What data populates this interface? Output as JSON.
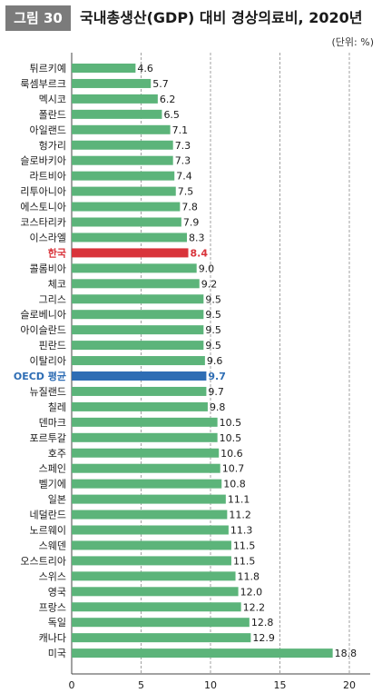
{
  "header": {
    "figure_label": "그림 30",
    "title": "국내총생산(GDP) 대비 경상의료비, 2020년",
    "unit": "(단위: %)"
  },
  "chart_data": {
    "type": "bar",
    "orientation": "horizontal",
    "categories": [
      "튀르키예",
      "룩셈부르크",
      "멕시코",
      "폴란드",
      "아일랜드",
      "헝가리",
      "슬로바키아",
      "라트비아",
      "리투아니아",
      "에스토니아",
      "코스타리카",
      "이스라엘",
      "한국",
      "콜롬비아",
      "체코",
      "그리스",
      "슬로베니아",
      "아이슬란드",
      "핀란드",
      "이탈리아",
      "OECD 평균",
      "뉴질랜드",
      "칠레",
      "덴마크",
      "포르투갈",
      "호주",
      "스페인",
      "벨기에",
      "일본",
      "네덜란드",
      "노르웨이",
      "스웨덴",
      "오스트리아",
      "스위스",
      "영국",
      "프랑스",
      "독일",
      "캐나다",
      "미국"
    ],
    "values": [
      4.6,
      5.7,
      6.2,
      6.5,
      7.1,
      7.3,
      7.3,
      7.4,
      7.5,
      7.8,
      7.9,
      8.3,
      8.4,
      9.0,
      9.2,
      9.5,
      9.5,
      9.5,
      9.5,
      9.6,
      9.7,
      9.7,
      9.8,
      10.5,
      10.5,
      10.6,
      10.7,
      10.8,
      11.1,
      11.2,
      11.3,
      11.5,
      11.5,
      11.8,
      12.0,
      12.2,
      12.8,
      12.9,
      18.8
    ],
    "value_labels": [
      "4.6",
      "5.7",
      "6.2",
      "6.5",
      "7.1",
      "7.3",
      "7.3",
      "7.4",
      "7.5",
      "7.8",
      "7.9",
      "8.3",
      "8.4",
      "9.0",
      "9.2",
      "9.5",
      "9.5",
      "9.5",
      "9.5",
      "9.6",
      "9.7",
      "9.7",
      "9.8",
      "10.5",
      "10.5",
      "10.6",
      "10.7",
      "10.8",
      "11.1",
      "11.2",
      "11.3",
      "11.5",
      "11.5",
      "11.8",
      "12.0",
      "12.2",
      "12.8",
      "12.9",
      "18.8"
    ],
    "highlights": {
      "한국": "#d9343b",
      "OECD 평균": "#2e6db4"
    },
    "x_ticks": [
      0,
      5,
      10,
      15,
      20
    ],
    "xlim": [
      0,
      21.5
    ],
    "grid": "vertical dashed",
    "colors": {
      "bar": "#5cb47a",
      "korea": "#d9343b",
      "oecd": "#2e6db4",
      "text": "#1a1a1a",
      "grid": "#8a8a8a"
    }
  }
}
